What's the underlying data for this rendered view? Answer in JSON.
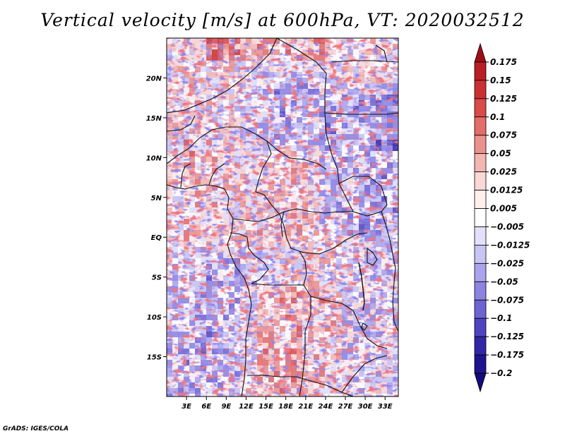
{
  "title": "Vertical velocity [m/s] at 600hPa, VT: 2020032512",
  "credit": "GrADS: IGES/COLA",
  "map": {
    "lat_labels": [
      "20N",
      "15N",
      "10N",
      "5N",
      "EQ",
      "5S",
      "10S",
      "15S"
    ],
    "lat_values": [
      20,
      15,
      10,
      5,
      0,
      -5,
      -10,
      -15
    ],
    "lon_labels": [
      "3E",
      "6E",
      "9E",
      "12E",
      "15E",
      "18E",
      "21E",
      "24E",
      "27E",
      "30E",
      "33E"
    ],
    "lon_values": [
      3,
      6,
      9,
      12,
      15,
      18,
      21,
      24,
      27,
      30,
      33
    ],
    "lon_range": [
      0,
      35
    ],
    "lat_range": [
      -20,
      25
    ]
  },
  "colorbar": {
    "labels": [
      "0.175",
      "0.15",
      "0.125",
      "0.1",
      "0.075",
      "0.05",
      "0.025",
      "0.0125",
      "0.005",
      "−0.005",
      "−0.0125",
      "−0.025",
      "−0.05",
      "−0.075",
      "−0.1",
      "−0.125",
      "−0.175",
      "−0.2"
    ],
    "colors": [
      "#9e0f14",
      "#b81e24",
      "#cc2f32",
      "#d94a48",
      "#e36d68",
      "#ec928c",
      "#f4b6b2",
      "#fad8d5",
      "#fff0ee",
      "#ffffff",
      "#e2e0fb",
      "#c8c4f4",
      "#aaa4ec",
      "#8c84e0",
      "#6d63d2",
      "#4f44c0",
      "#3325a8",
      "#20138e",
      "#150a7a"
    ]
  }
}
